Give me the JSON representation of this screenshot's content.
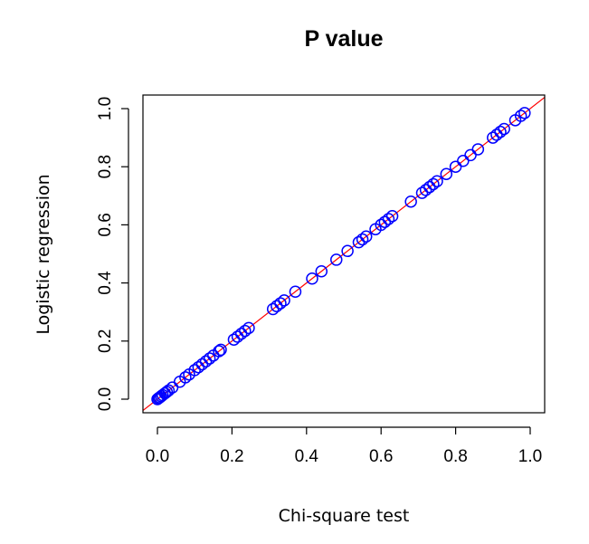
{
  "chart_data": {
    "type": "scatter",
    "title": "P value",
    "xlabel": "Chi-square test",
    "ylabel": "Logistic regression",
    "xlim": [
      0.0,
      1.0
    ],
    "ylim": [
      0.0,
      1.0
    ],
    "x_ticks": [
      "0.0",
      "0.2",
      "0.4",
      "0.6",
      "0.8",
      "1.0"
    ],
    "y_ticks": [
      "0.0",
      "0.2",
      "0.4",
      "0.6",
      "0.8",
      "1.0"
    ],
    "grid": false,
    "reference_line": {
      "type": "y=x",
      "color": "#ff0000"
    },
    "point_color": "#0000ff",
    "series": [
      {
        "x": [
          0.0,
          0.003,
          0.006,
          0.01,
          0.014,
          0.02,
          0.025,
          0.03,
          0.04,
          0.06,
          0.075,
          0.085,
          0.1,
          0.11,
          0.12,
          0.13,
          0.14,
          0.15,
          0.165,
          0.17,
          0.205,
          0.215,
          0.225,
          0.235,
          0.245,
          0.31,
          0.32,
          0.33,
          0.34,
          0.37,
          0.415,
          0.44,
          0.48,
          0.51,
          0.54,
          0.55,
          0.56,
          0.585,
          0.6,
          0.61,
          0.62,
          0.63,
          0.68,
          0.71,
          0.72,
          0.73,
          0.74,
          0.75,
          0.775,
          0.8,
          0.82,
          0.84,
          0.86,
          0.9,
          0.91,
          0.92,
          0.93,
          0.96,
          0.975,
          0.985
        ],
        "y": [
          0.0,
          0.003,
          0.006,
          0.01,
          0.014,
          0.02,
          0.025,
          0.03,
          0.04,
          0.06,
          0.075,
          0.085,
          0.1,
          0.11,
          0.12,
          0.13,
          0.14,
          0.15,
          0.165,
          0.17,
          0.205,
          0.215,
          0.225,
          0.235,
          0.245,
          0.31,
          0.32,
          0.33,
          0.34,
          0.37,
          0.415,
          0.44,
          0.48,
          0.51,
          0.54,
          0.55,
          0.56,
          0.585,
          0.6,
          0.61,
          0.62,
          0.63,
          0.68,
          0.71,
          0.72,
          0.73,
          0.74,
          0.75,
          0.775,
          0.8,
          0.82,
          0.84,
          0.86,
          0.9,
          0.91,
          0.92,
          0.93,
          0.96,
          0.975,
          0.985
        ]
      }
    ]
  }
}
